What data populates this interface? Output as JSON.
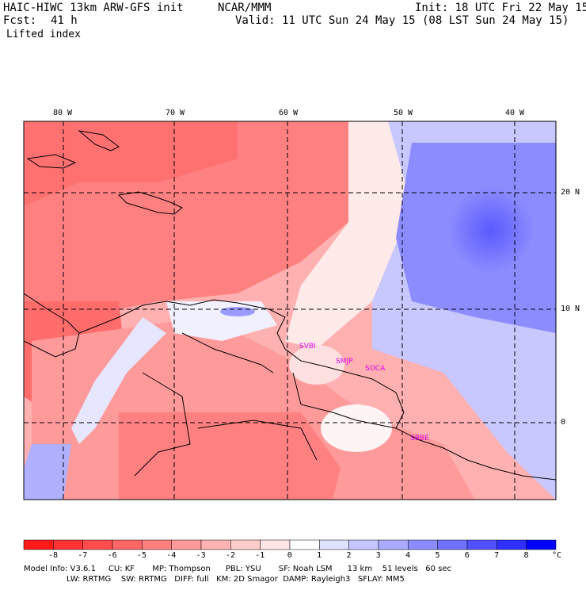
{
  "header": {
    "model": "HAIC-HIWC 13km ARW-GFS init",
    "org": "NCAR/MMM",
    "init": "Init: 18 UTC Fri 22 May 15",
    "fcst_label": "Fcst:",
    "fcst_value": "41 h",
    "valid": "Valid: 11 UTC Sun 24 May 15 (08 LST Sun 24 May 15)",
    "field": "Lifted index"
  },
  "map": {
    "lon_labels": [
      "80 W",
      "70 W",
      "60 W",
      "50 W",
      "40 W"
    ],
    "lat_labels": [
      "20 N",
      "10 N",
      "0"
    ],
    "stations": [
      "SVBI",
      "SMJP",
      "SOCA",
      "SBBE"
    ],
    "colors": {
      "border": "#000000",
      "grid": "#000000",
      "station": "#e400e4"
    }
  },
  "colorbar": {
    "ticks": [
      "-8",
      "-7",
      "-6",
      "-5",
      "-4",
      "-3",
      "-2",
      "-1",
      "0",
      "1",
      "2",
      "3",
      "4",
      "5",
      "6",
      "7",
      "8"
    ],
    "unit": "°C",
    "colors": [
      "#ff1a1a",
      "#ff3333",
      "#ff4d4d",
      "#ff6666",
      "#ff7f7f",
      "#ff9999",
      "#ffb3b3",
      "#ffcccc",
      "#ffe6e6",
      "#ffffff",
      "#e0e0ff",
      "#c6c6ff",
      "#aaaaff",
      "#8c8cff",
      "#7070ff",
      "#5050ff",
      "#3030ff",
      "#0000ff"
    ]
  },
  "footer": {
    "line1": "Model Info: V3.6.1     CU: KF       MP: Thompson      PBL: YSU       SF: Noah LSM      13 km    51 levels   60 sec",
    "line2": "                 LW: RRTMG    SW: RRTMG   DIFF: full   KM: 2D Smagor  DAMP: Rayleigh3   SFLAY: MM5"
  }
}
